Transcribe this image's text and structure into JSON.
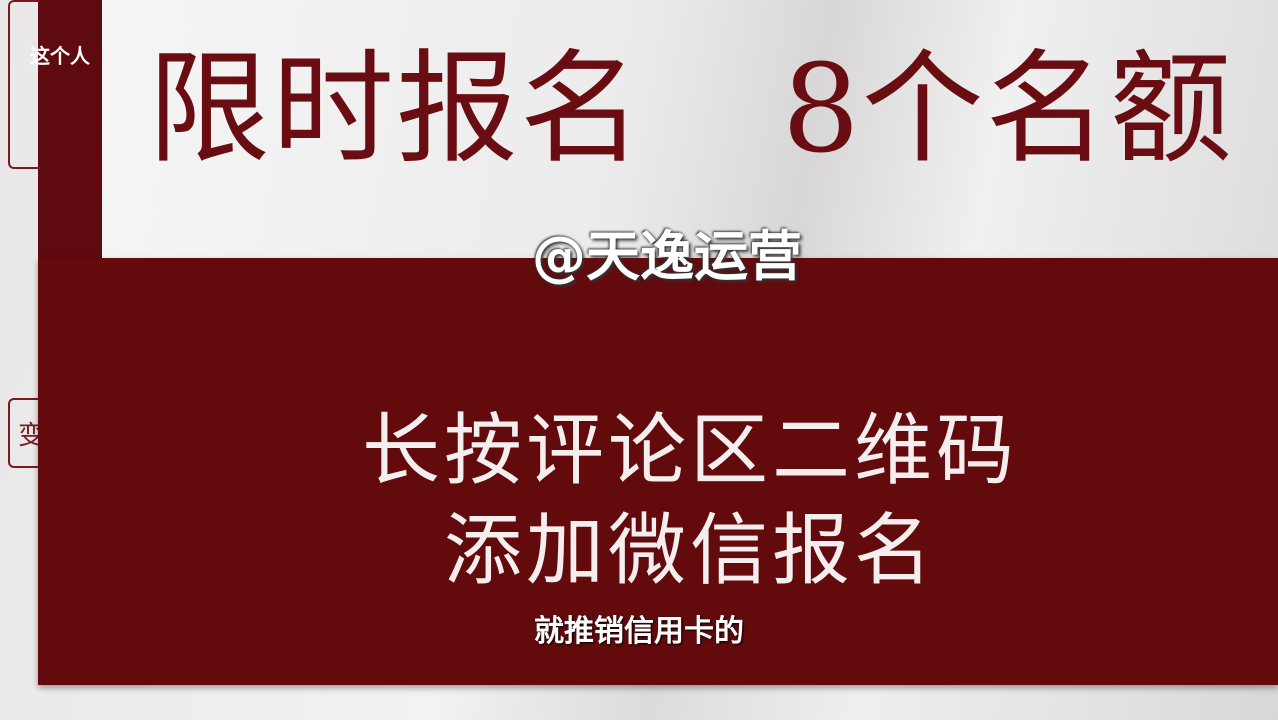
{
  "sidebar": {
    "top_text": "这个人",
    "node_label": "变"
  },
  "poster": {
    "headline_left": "限时报名",
    "headline_right": "8个名额",
    "instruction": [
      "长按评论区二维码",
      "添加微信报名"
    ]
  },
  "watermark": "@天逸运营",
  "subtitle": "就推销信用卡的"
}
